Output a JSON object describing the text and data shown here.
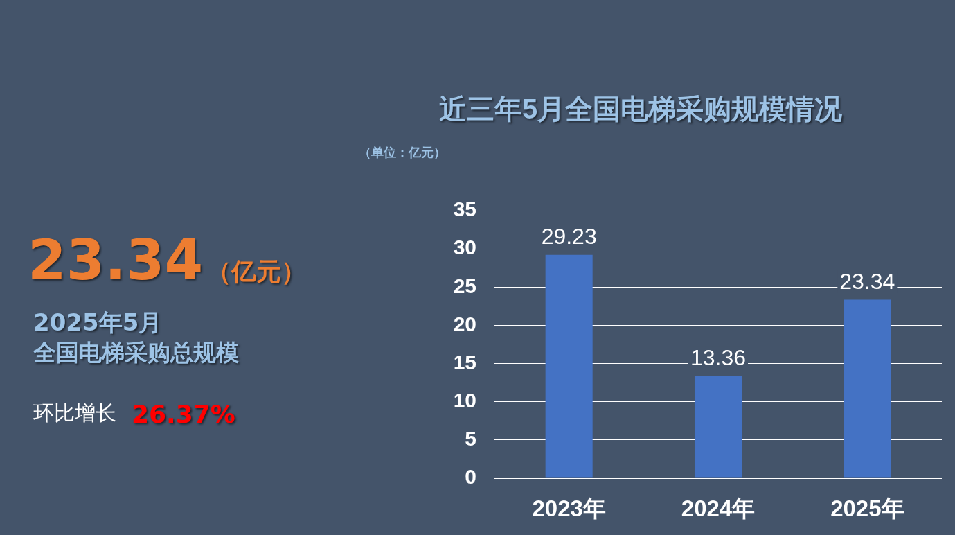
{
  "chart_data": [
    {
      "type": "other",
      "annotations": [
        "23.34",
        "（亿元）",
        "2025年5月",
        "全国电梯采购总规模",
        "环比增长",
        "26.37%"
      ]
    },
    {
      "type": "bar",
      "title": "近三年5月全国电梯采购规模情况",
      "ylabel": "（单位：亿元）",
      "categories": [
        "2023年",
        "2024年",
        "2025年"
      ],
      "values": [
        29.23,
        13.36,
        23.34
      ],
      "color": "#4472c4",
      "ylim": [
        0,
        35
      ],
      "yticks": [
        0,
        5,
        10,
        15,
        20,
        25,
        30,
        35
      ],
      "grid": "y",
      "data_labels": true
    }
  ]
}
